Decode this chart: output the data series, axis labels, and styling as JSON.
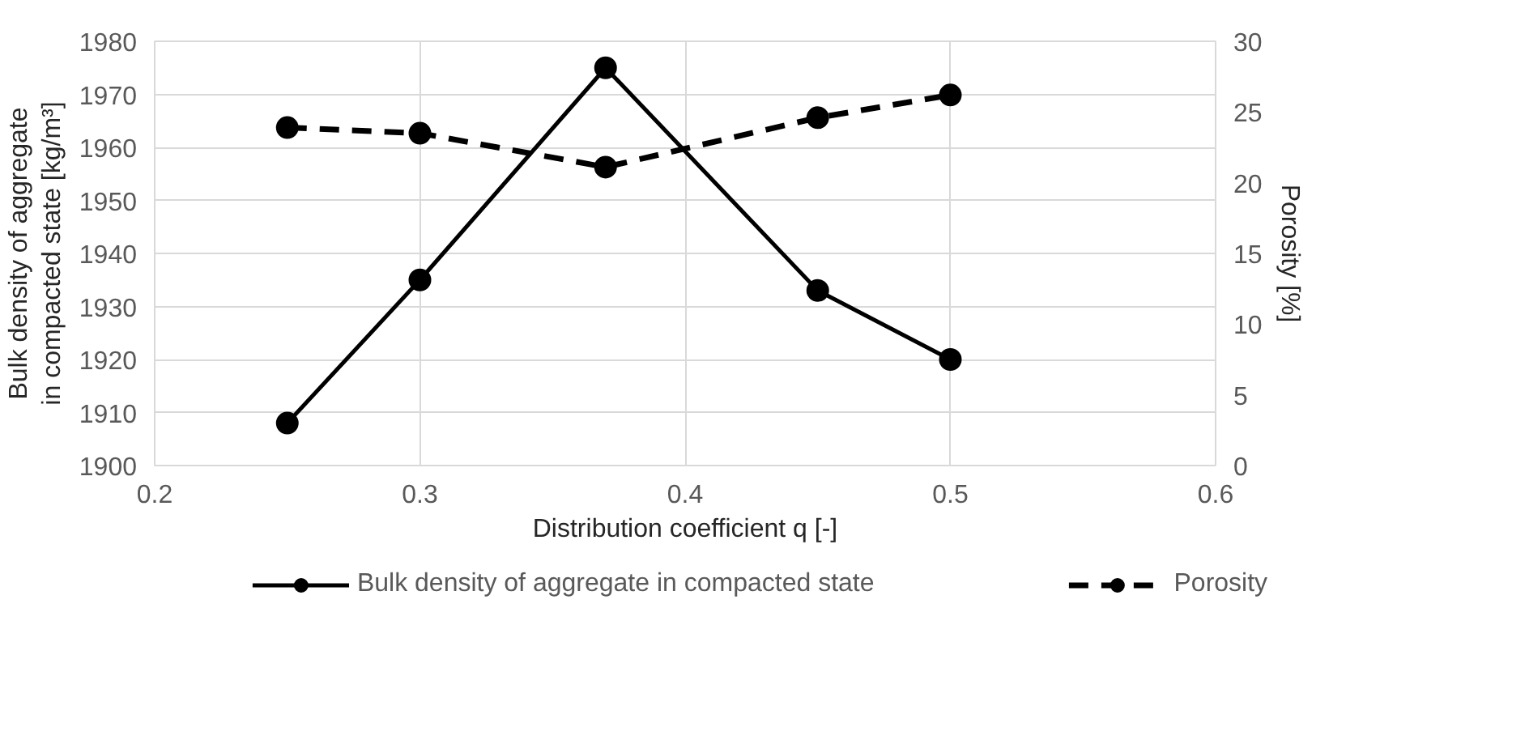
{
  "chart_data": {
    "type": "line",
    "xlabel": "Distribution coefficient q [-]",
    "ylabel": "Bulk density of aggregate in compacted state [kg/m³]",
    "y2label": "Porosity [%]",
    "x": [
      0.25,
      0.3,
      0.37,
      0.45,
      0.5
    ],
    "series": [
      {
        "name": "Bulk density of aggregate in compacted state",
        "color": "#000000",
        "values": [
          1908,
          1935,
          1975,
          1933,
          1920
        ],
        "line_style": "solid"
      },
      {
        "name": "Porosity",
        "color": "#000000",
        "values": [
          23.9,
          23.5,
          21.1,
          24.6,
          26.2
        ],
        "axis": "y2",
        "line_style": "dashed"
      }
    ],
    "xlim": [
      0.2,
      0.6
    ],
    "xticks": [
      0.2,
      0.3,
      0.4,
      0.5,
      0.6
    ],
    "ylim": [
      1900,
      1980
    ],
    "yticks": [
      1900,
      1910,
      1920,
      1930,
      1940,
      1950,
      1960,
      1970,
      1980
    ],
    "y2lim": [
      0,
      30
    ],
    "y2ticks": [
      0,
      5,
      10,
      15,
      20,
      25,
      30
    ],
    "grid": true,
    "legend": "bottom",
    "marker": "circle"
  }
}
